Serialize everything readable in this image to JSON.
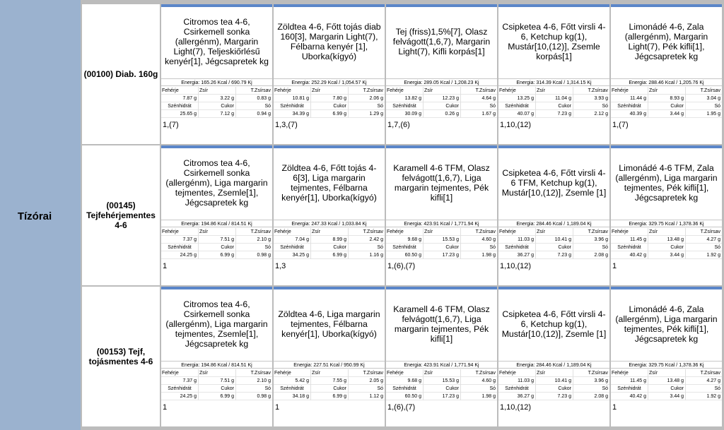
{
  "side_label": "Tízórai",
  "nutrient_labels": {
    "protein": "Fehérje",
    "fat": "Zsír",
    "sat_fat": "T.Zsírsav",
    "carb": "Szénhidrát",
    "sugar": "Cukor",
    "salt": "Só"
  },
  "rows": [
    {
      "diet": "(00100) Diab. 160g",
      "days": [
        {
          "meal": "Citromos tea 4-6, Csirkemell sonka (allergénm), Margarin Light(7), Teljeskiőrlésű kenyér[1], Jégcsapretek kg",
          "energy": "Energia: 165.26 Kcal / 690.79 Kj",
          "protein": "7.87 g",
          "fat": "3.22 g",
          "sat_fat": "0.83 g",
          "carb": "25.65 g",
          "sugar": "7.12 g",
          "salt": "0.94 g",
          "allergens": "1,(7)"
        },
        {
          "meal": "Zöldtea 4-6, Főtt tojás diab 160[3], Margarin Light(7), Félbarna kenyér [1], Uborka(kígyó)",
          "energy": "Energia: 252.29 Kcal / 1,054.57 Kj",
          "protein": "10.81 g",
          "fat": "7.80 g",
          "sat_fat": "2.06 g",
          "carb": "34.39 g",
          "sugar": "6.99 g",
          "salt": "1.29 g",
          "allergens": "1,3,(7)"
        },
        {
          "meal": "Tej (friss)1,5%[7], Olasz felvágott(1,6,7), Margarin Light(7), Kifli korpás[1]",
          "energy": "Energia: 289.05 Kcal / 1,208.23 Kj",
          "protein": "13.82 g",
          "fat": "12.23 g",
          "sat_fat": "4.64 g",
          "carb": "30.09 g",
          "sugar": "0.26 g",
          "salt": "1.67 g",
          "allergens": "1,7,(6)"
        },
        {
          "meal": "Csipketea 4-6, Főtt virsli 4-6, Ketchup kg(1), Mustár[10,(12)], Zsemle korpás[1]",
          "energy": "Energia: 314.39 Kcal / 1,314.15 Kj",
          "protein": "13.25 g",
          "fat": "11.04 g",
          "sat_fat": "3.93 g",
          "carb": "40.07 g",
          "sugar": "7.23 g",
          "salt": "2.12 g",
          "allergens": "1,10,(12)"
        },
        {
          "meal": "Limonádé 4-6, Zala (allergénm), Margarin Light(7), Pék kifli[1], Jégcsapretek kg",
          "energy": "Energia: 288.46 Kcal / 1,205.76 Kj",
          "protein": "11.44 g",
          "fat": "8.93 g",
          "sat_fat": "3.04 g",
          "carb": "40.39 g",
          "sugar": "3.44 g",
          "salt": "1.95 g",
          "allergens": "1,(7)"
        }
      ]
    },
    {
      "diet": "(00145) Tejfehérjementes 4-6",
      "days": [
        {
          "meal": "Citromos tea 4-6, Csirkemell sonka (allergénm), Liga margarin tejmentes, Zsemle[1], Jégcsapretek kg",
          "energy": "Energia: 194.86 Kcal / 814.51 Kj",
          "protein": "7.37 g",
          "fat": "7.51 g",
          "sat_fat": "2.10 g",
          "carb": "24.25 g",
          "sugar": "6.99 g",
          "salt": "0.98 g",
          "allergens": "1"
        },
        {
          "meal": "Zöldtea 4-6, Főtt tojás 4-6[3], Liga margarin tejmentes, Félbarna kenyér[1], Uborka(kígyó)",
          "energy": "Energia: 247.33 Kcal / 1,033.84 Kj",
          "protein": "7.04 g",
          "fat": "8.99 g",
          "sat_fat": "2.42 g",
          "carb": "34.25 g",
          "sugar": "6.99 g",
          "salt": "1.16 g",
          "allergens": "1,3"
        },
        {
          "meal": "Karamell 4-6 TFM, Olasz felvágott(1,6,7), Liga margarin tejmentes, Pék kifli[1]",
          "energy": "Energia: 423.91 Kcal / 1,771.94 Kj",
          "protein": "9.68 g",
          "fat": "15.53 g",
          "sat_fat": "4.60 g",
          "carb": "60.50 g",
          "sugar": "17.23 g",
          "salt": "1.98 g",
          "allergens": "1,(6),(7)"
        },
        {
          "meal": "Csipketea 4-6, Főtt virsli 4-6 TFM, Ketchup kg(1), Mustár[10,(12)], Zsemle [1]",
          "energy": "Energia: 284.46 Kcal / 1,189.04 Kj",
          "protein": "11.03 g",
          "fat": "10.41 g",
          "sat_fat": "3.96 g",
          "carb": "36.27 g",
          "sugar": "7.23 g",
          "salt": "2.08 g",
          "allergens": "1,10,(12)"
        },
        {
          "meal": "Limonádé 4-6 TFM, Zala (allergénm), Liga margarin tejmentes, Pék kifli[1], Jégcsapretek kg",
          "energy": "Energia: 329.75 Kcal / 1,378.36 Kj",
          "protein": "11.45 g",
          "fat": "13.48 g",
          "sat_fat": "4.27 g",
          "carb": "40.42 g",
          "sugar": "3.44 g",
          "salt": "1.92 g",
          "allergens": "1"
        }
      ]
    },
    {
      "diet": "(00153) Tejf, tojásmentes 4-6",
      "days": [
        {
          "meal": "Citromos tea 4-6, Csirkemell sonka (allergénm), Liga margarin tejmentes, Zsemle[1], Jégcsapretek kg",
          "energy": "Energia: 194.86 Kcal / 814.51 Kj",
          "protein": "7.37 g",
          "fat": "7.51 g",
          "sat_fat": "2.10 g",
          "carb": "24.25 g",
          "sugar": "6.99 g",
          "salt": "0.98 g",
          "allergens": "1"
        },
        {
          "meal": "Zöldtea 4-6, Liga margarin tejmentes, Félbarna kenyér[1], Uborka(kígyó)",
          "energy": "Energia: 227.51 Kcal / 950.99 Kj",
          "protein": "5.42 g",
          "fat": "7.55 g",
          "sat_fat": "2.05 g",
          "carb": "34.18 g",
          "sugar": "6.99 g",
          "salt": "1.12 g",
          "allergens": "1"
        },
        {
          "meal": "Karamell 4-6 TFM, Olasz felvágott(1,6,7), Liga margarin tejmentes, Pék kifli[1]",
          "energy": "Energia: 423.91 Kcal / 1,771.94 Kj",
          "protein": "9.68 g",
          "fat": "15.53 g",
          "sat_fat": "4.60 g",
          "carb": "60.50 g",
          "sugar": "17.23 g",
          "salt": "1.98 g",
          "allergens": "1,(6),(7)"
        },
        {
          "meal": "Csipketea 4-6, Főtt virsli 4-6, Ketchup kg(1), Mustár[10,(12)], Zsemle [1]",
          "energy": "Energia: 284.46 Kcal / 1,189.04 Kj",
          "protein": "11.03 g",
          "fat": "10.41 g",
          "sat_fat": "3.96 g",
          "carb": "36.27 g",
          "sugar": "7.23 g",
          "salt": "2.08 g",
          "allergens": "1,10,(12)"
        },
        {
          "meal": "Limonádé 4-6, Zala (allergénm), Liga margarin tejmentes, Pék kifli[1], Jégcsapretek kg",
          "energy": "Energia: 329.75 Kcal / 1,378.36 Kj",
          "protein": "11.45 g",
          "fat": "13.48 g",
          "sat_fat": "4.27 g",
          "carb": "40.42 g",
          "sugar": "3.44 g",
          "salt": "1.92 g",
          "allergens": "1"
        }
      ]
    }
  ]
}
